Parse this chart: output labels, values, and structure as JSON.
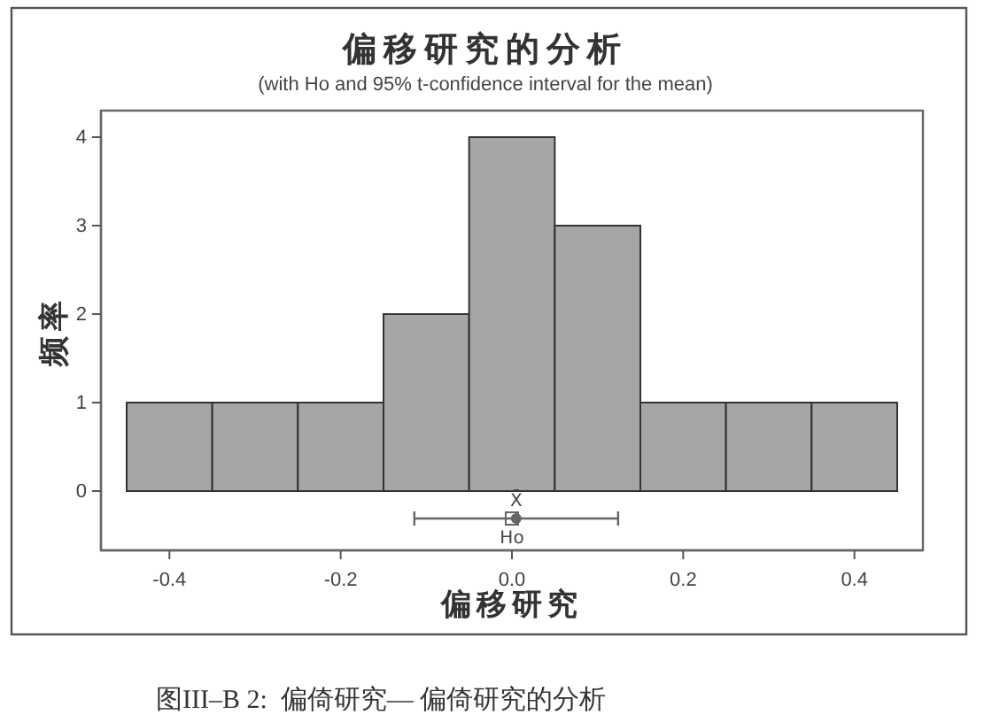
{
  "chart_data": {
    "type": "histogram",
    "title": "偏移研究的分析",
    "subtitle": "(with Ho and 95% t-confidence interval for the mean)",
    "xlabel": "偏移研究",
    "ylabel": "频率",
    "bins": [
      -0.45,
      -0.35,
      -0.25,
      -0.15,
      -0.05,
      0.05,
      0.15,
      0.25,
      0.35,
      0.45
    ],
    "values": [
      1,
      1,
      1,
      2,
      4,
      3,
      1,
      1,
      1
    ],
    "color": "#a6a6a6",
    "series": [
      {
        "name": "X̄",
        "type": "scatter",
        "x": [
          0.005
        ],
        "values": [
          -0.31
        ],
        "xerrors": [
          [
            -0.114,
            0.124
          ]
        ],
        "color": "#666666",
        "marker": "circle"
      },
      {
        "name": "Ho",
        "type": "scatter",
        "x": [
          0
        ],
        "values": [
          -0.31
        ],
        "color": "#666666",
        "marker": "square"
      }
    ],
    "xlim": [
      -0.48,
      0.48
    ],
    "ylim": [
      -0.67,
      4.3
    ],
    "xticks": [
      -0.4,
      -0.2,
      {
        "value": 0,
        "label": "0.0"
      },
      0.2,
      0.4
    ],
    "yticks": [
      0,
      1,
      2,
      3,
      4
    ],
    "annotations": [
      "图III–B 2:  偏倚研究— 偏倚研究的分析"
    ]
  }
}
